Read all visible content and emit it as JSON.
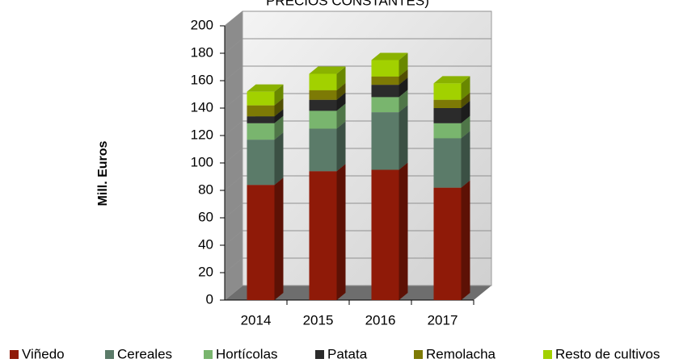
{
  "chart_data": {
    "type": "bar",
    "stacked": true,
    "title": "PRECIOS CONSTANTES)",
    "y_label": "Mill. Euros",
    "categories": [
      "2014",
      "2015",
      "2016",
      "2017"
    ],
    "series": [
      {
        "name": "Viñedo",
        "color": "#8f1a08",
        "values": [
          84,
          94,
          95,
          82
        ]
      },
      {
        "name": "Cereales",
        "color": "#5b7b69",
        "values": [
          33,
          31,
          42,
          36
        ]
      },
      {
        "name": "Hortícolas",
        "color": "#79b56e",
        "values": [
          12,
          13,
          11,
          11
        ]
      },
      {
        "name": "Patata",
        "color": "#2b2b2b",
        "values": [
          5,
          8,
          9,
          11
        ]
      },
      {
        "name": "Remolacha",
        "color": "#7d7a05",
        "values": [
          8,
          7,
          6,
          6
        ]
      },
      {
        "name": "Resto de cultivos",
        "color": "#a2d100",
        "values": [
          10,
          12,
          12,
          12
        ]
      }
    ],
    "ylim": [
      0,
      200
    ],
    "yticks": [
      0,
      20,
      40,
      60,
      80,
      100,
      120,
      140,
      160,
      180,
      200
    ],
    "grid": true,
    "legend": "bottom"
  }
}
